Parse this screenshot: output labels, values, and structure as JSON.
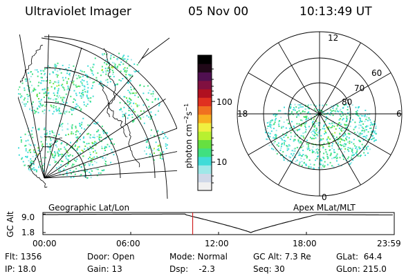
{
  "header": {
    "title": "Ultraviolet Imager",
    "date": "05 Nov 00",
    "time": "10:13:49 UT"
  },
  "left_map": {
    "label": "Geographic Lat/Lon"
  },
  "right_map": {
    "label": "Apex MLat/MLT",
    "mlt_labels": {
      "top": "12",
      "left": "18",
      "right": "6",
      "bottom": "0"
    },
    "lat_labels": [
      "60",
      "70",
      "80"
    ]
  },
  "colorbar": {
    "unit_label": "photon cm",
    "unit_sup1": "−2",
    "unit_mid": "s",
    "unit_sup2": "−1",
    "ticks": [
      "100",
      "10"
    ],
    "colors": [
      "#f0f0f0",
      "#cfd8e8",
      "#9fe8e8",
      "#40dcd8",
      "#40e080",
      "#66e040",
      "#b8f030",
      "#f0f040",
      "#f8b020",
      "#f07020",
      "#e03020",
      "#b01020",
      "#801040",
      "#501050",
      "#200818",
      "#000000"
    ]
  },
  "timeline": {
    "axis_label": "GC Alt",
    "y_ticks": [
      "9.0",
      "1.8"
    ],
    "x_ticks": [
      "00:00",
      "06:00",
      "12:00",
      "18:00",
      "23:59"
    ],
    "current_time_hours": 10.23,
    "marker_color": "#d02020"
  },
  "info": {
    "flt": "Flt: 1356",
    "ip": "IP: 18.0",
    "door": "Door: Open",
    "gain": "Gain: 13",
    "mode": "Mode: Normal",
    "dsp": "Dsp:    -2.3",
    "gc_alt": "GC Alt: 7.3 Re",
    "seq": "Seq: 30",
    "glat": "GLat:  64.4",
    "glon": "GLon: 215.0"
  }
}
